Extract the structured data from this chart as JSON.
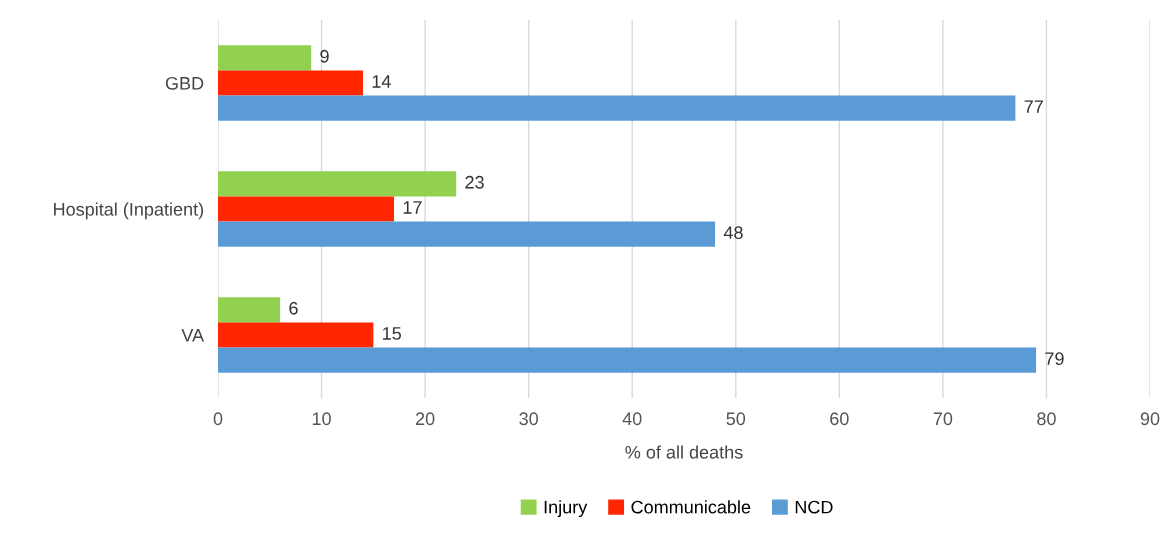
{
  "chart_data": {
    "type": "bar",
    "orientation": "horizontal",
    "xlabel": "% of all deaths",
    "categories": [
      "GBD",
      "Hospital (Inpatient)",
      "VA"
    ],
    "series": [
      {
        "name": "Injury",
        "color": "#92d050",
        "values": [
          9,
          23,
          6
        ]
      },
      {
        "name": "Communicable",
        "color": "#ff2600",
        "values": [
          14,
          17,
          15
        ]
      },
      {
        "name": "NCD",
        "color": "#5b9bd5",
        "values": [
          77,
          48,
          79
        ]
      }
    ],
    "xlim": [
      0,
      90
    ],
    "xticks": [
      0,
      10,
      20,
      30,
      40,
      50,
      60,
      70,
      80,
      90
    ],
    "grid": "x",
    "legend": "bottom",
    "data_labels": true
  }
}
